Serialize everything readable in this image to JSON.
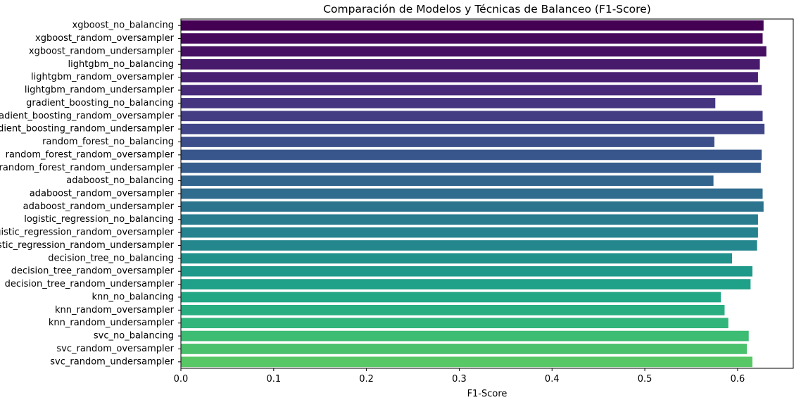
{
  "chart_data": {
    "type": "bar",
    "orientation": "horizontal",
    "title": "Comparación de Modelos y Técnicas de Balanceo (F1-Score)",
    "xlabel": "F1-Score",
    "ylabel": "",
    "xlim": [
      0,
      0.66
    ],
    "xticks": [
      0.0,
      0.1,
      0.2,
      0.3,
      0.4,
      0.5,
      0.6
    ],
    "xtick_labels": [
      "0.0",
      "0.1",
      "0.2",
      "0.3",
      "0.4",
      "0.5",
      "0.6"
    ],
    "grid": false,
    "palette": "viridis",
    "categories": [
      "xgboost_no_balancing",
      "xgboost_random_oversampler",
      "xgboost_random_undersampler",
      "lightgbm_no_balancing",
      "lightgbm_random_oversampler",
      "lightgbm_random_undersampler",
      "gradient_boosting_no_balancing",
      "gradient_boosting_random_oversampler",
      "gradient_boosting_random_undersampler",
      "random_forest_no_balancing",
      "random_forest_random_oversampler",
      "random_forest_random_undersampler",
      "adaboost_no_balancing",
      "adaboost_random_oversampler",
      "adaboost_random_undersampler",
      "logistic_regression_no_balancing",
      "logistic_regression_random_oversampler",
      "logistic_regression_random_undersampler",
      "decision_tree_no_balancing",
      "decision_tree_random_oversampler",
      "decision_tree_random_undersampler",
      "knn_no_balancing",
      "knn_random_oversampler",
      "knn_random_undersampler",
      "svc_no_balancing",
      "svc_random_oversampler",
      "svc_random_undersampler"
    ],
    "values": [
      0.628,
      0.627,
      0.631,
      0.624,
      0.622,
      0.626,
      0.576,
      0.627,
      0.629,
      0.575,
      0.626,
      0.625,
      0.574,
      0.627,
      0.628,
      0.622,
      0.622,
      0.621,
      0.594,
      0.616,
      0.614,
      0.582,
      0.586,
      0.59,
      0.612,
      0.61,
      0.616
    ],
    "colors": [
      "#440154",
      "#46085c",
      "#471063",
      "#481a6c",
      "#482173",
      "#472a7a",
      "#453581",
      "#433d84",
      "#404688",
      "#3c4f8a",
      "#39568c",
      "#365d8d",
      "#32658e",
      "#2f6c8e",
      "#2c738e",
      "#297b8e",
      "#26828e",
      "#24878e",
      "#21918c",
      "#1f998a",
      "#1fa088",
      "#22a785",
      "#28ae80",
      "#31b57b",
      "#3dbc74",
      "#4ac16d",
      "#58c765"
    ]
  }
}
